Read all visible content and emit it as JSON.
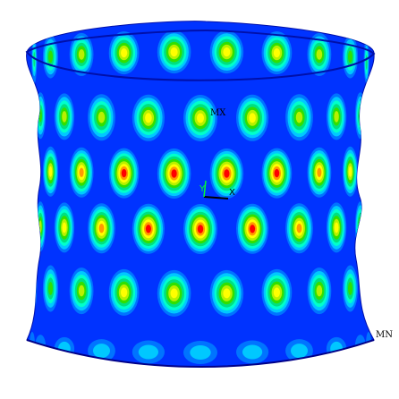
{
  "view": {
    "background": "#ffffff",
    "max_label": "MX",
    "min_label": "MN"
  },
  "triad": {
    "y_label": "Y",
    "x_label": "X",
    "y_color": "#00ff33",
    "x_color": "#000000"
  },
  "colormap": [
    "#0000ff",
    "#0074ff",
    "#00c8ff",
    "#00ffcc",
    "#00e080",
    "#30e000",
    "#b8f000",
    "#ffff00",
    "#ff9900",
    "#ff0000"
  ],
  "shell": {
    "columns_front": 10,
    "rows": 6,
    "dark_base": "#0010dd",
    "shell_base": "#0033ff"
  }
}
